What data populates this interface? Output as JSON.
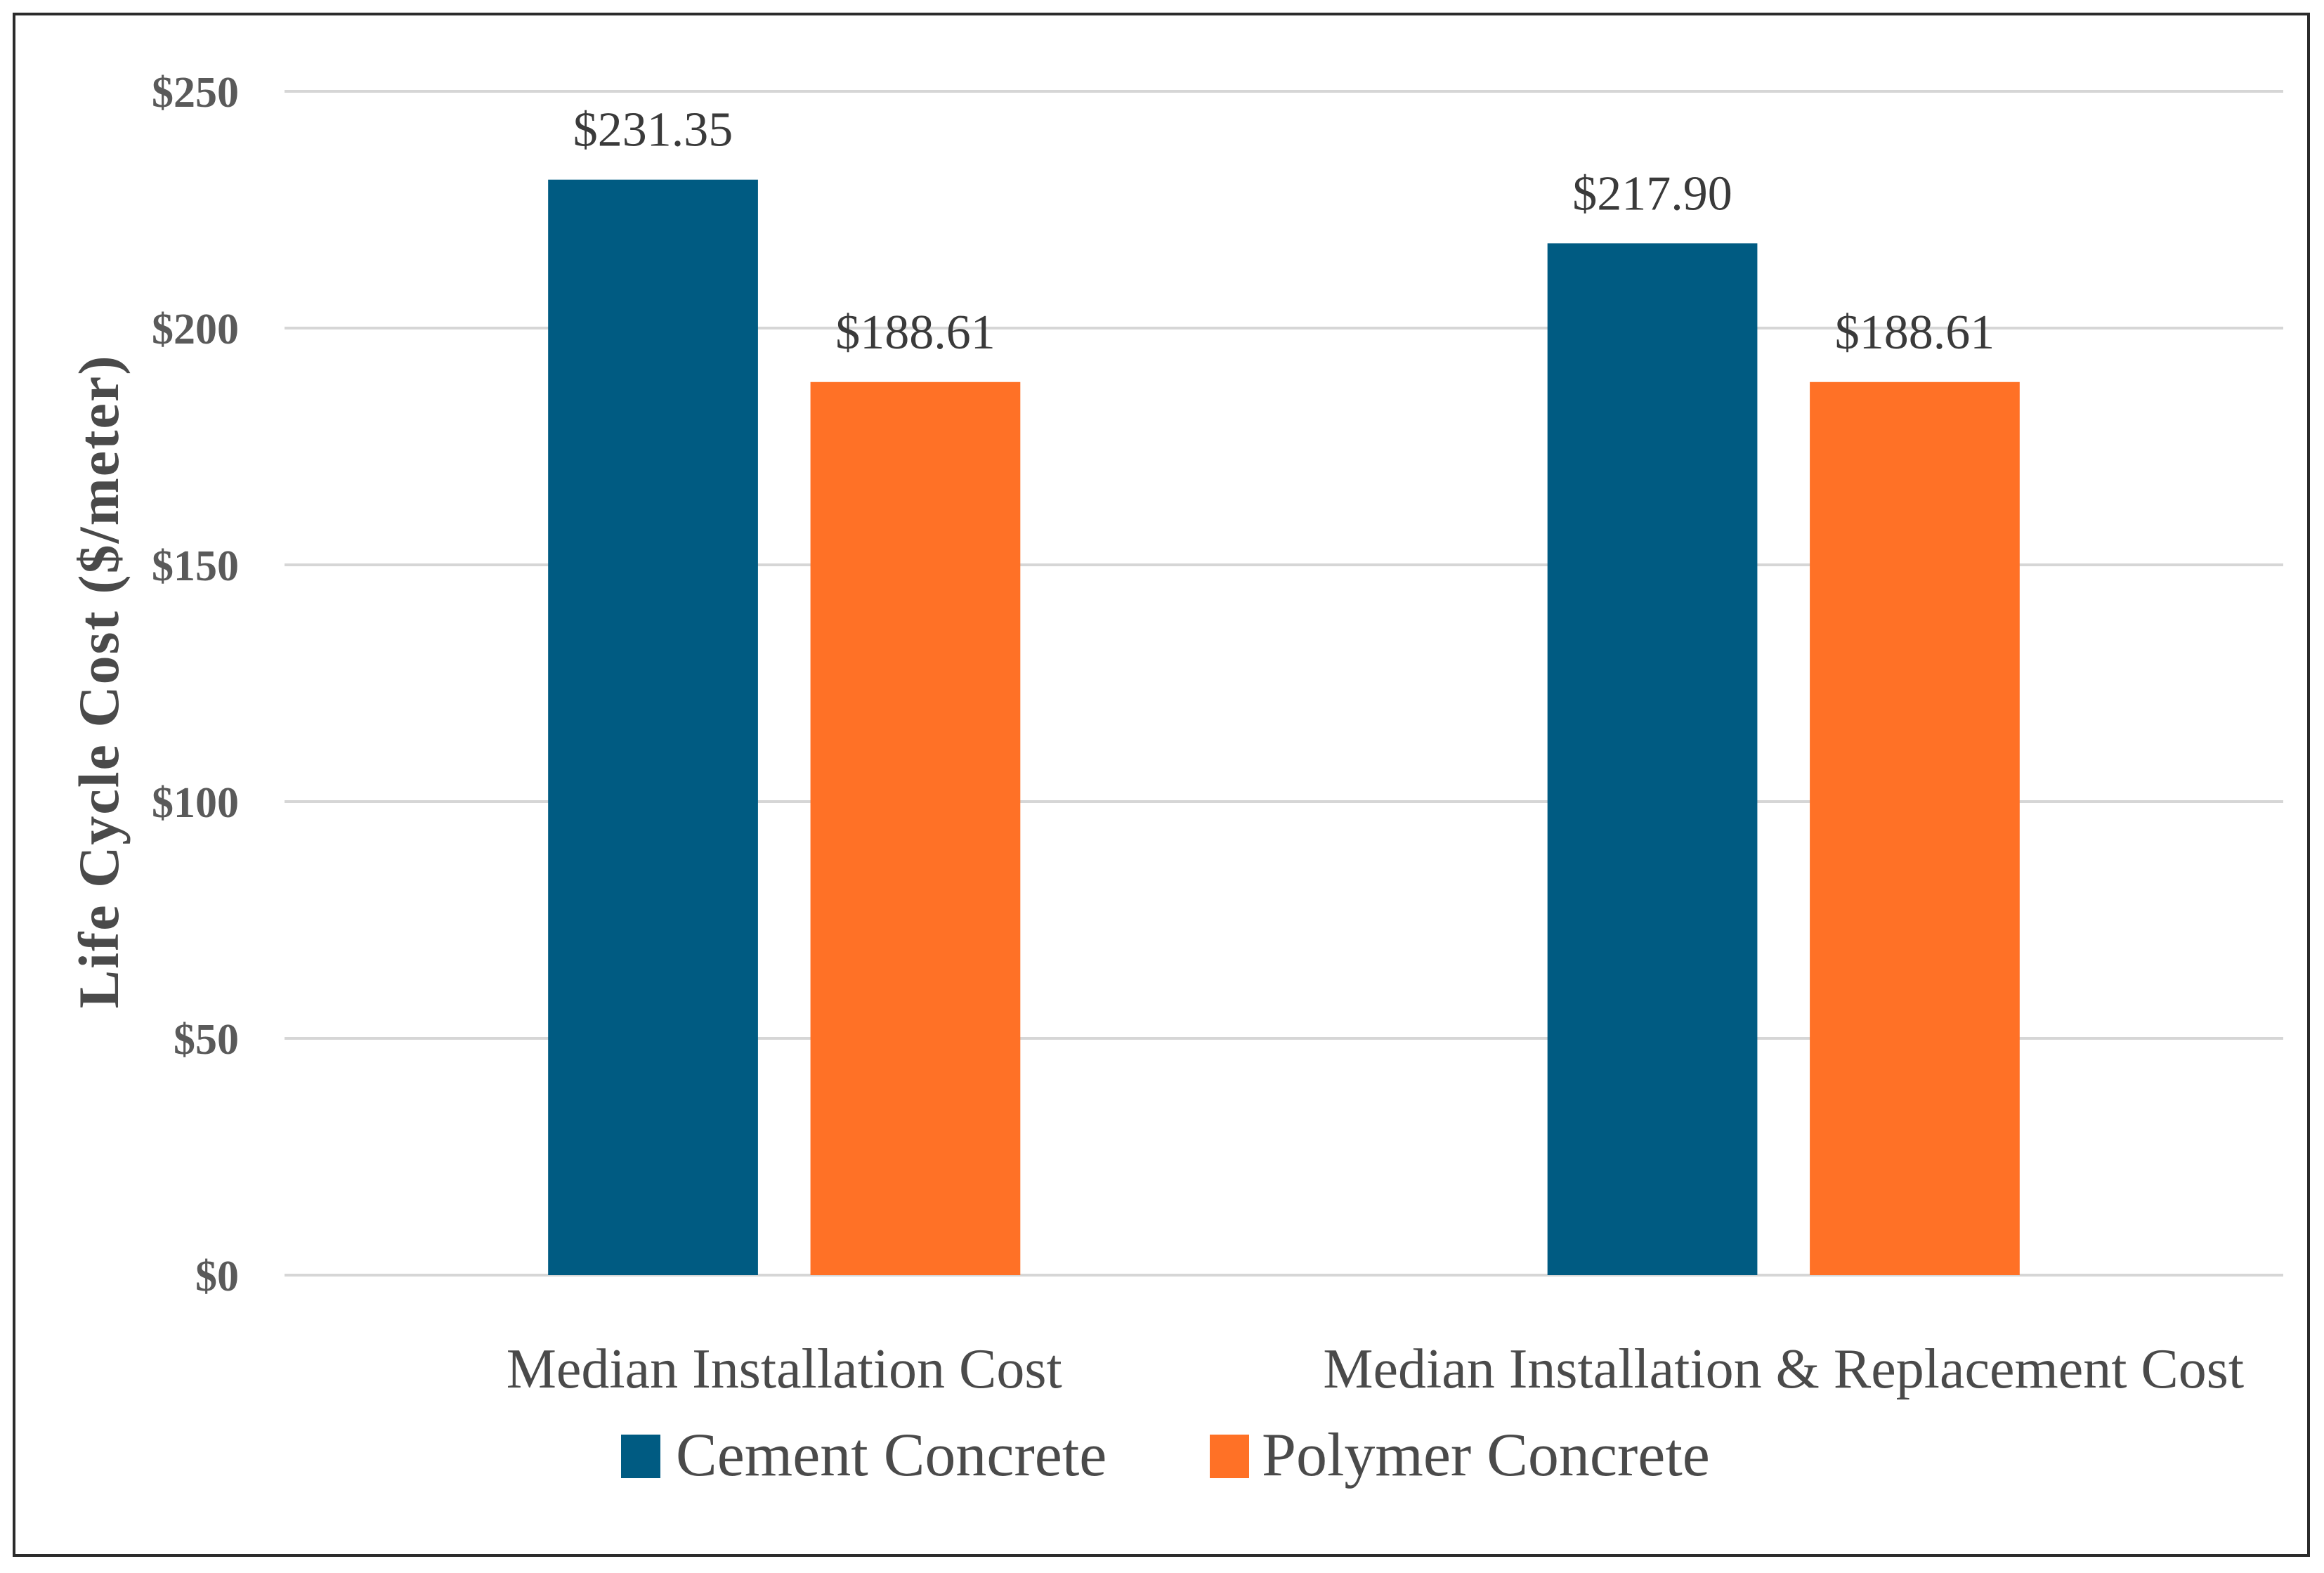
{
  "chart_data": {
    "type": "bar",
    "title": "",
    "xlabel": "",
    "ylabel": "Life Cycle Cost ($/meter)",
    "categories": [
      "Median Installation Cost",
      "Median Installation & Replacement Cost"
    ],
    "series": [
      {
        "name": "Cement Concrete",
        "color": "#005b82",
        "values": [
          231.35,
          217.9
        ],
        "labels": [
          "$231.35",
          "$217.90"
        ]
      },
      {
        "name": "Polymer Concrete",
        "color": "#ff7126",
        "values": [
          188.61,
          188.61
        ],
        "labels": [
          "$188.61",
          "$188.61"
        ]
      }
    ],
    "ylim": [
      0,
      250
    ],
    "yticks": [
      0,
      50,
      100,
      150,
      200,
      250
    ],
    "ytick_labels": [
      "$0",
      "$50",
      "$100",
      "$150",
      "$200",
      "$250"
    ],
    "grid": true,
    "legend_position": "bottom"
  }
}
